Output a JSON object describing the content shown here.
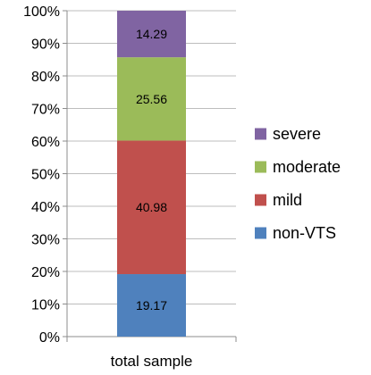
{
  "chart_data": {
    "type": "bar",
    "stacked": true,
    "categories": [
      "total sample"
    ],
    "series": [
      {
        "name": "non-VTS",
        "values": [
          19.17
        ],
        "color": "#4f81bd"
      },
      {
        "name": "mild",
        "values": [
          40.98
        ],
        "color": "#c0504d"
      },
      {
        "name": "moderate",
        "values": [
          25.56
        ],
        "color": "#9bbb59"
      },
      {
        "name": "severe",
        "values": [
          14.29
        ],
        "color": "#8064a2"
      }
    ],
    "title": "",
    "xlabel": "",
    "ylabel": "",
    "ylim": [
      0,
      100
    ],
    "yticks": [
      "0%",
      "10%",
      "20%",
      "30%",
      "40%",
      "50%",
      "60%",
      "70%",
      "80%",
      "90%",
      "100%"
    ],
    "grid": true,
    "legend_position": "right",
    "legend_order": [
      "severe",
      "moderate",
      "mild",
      "non-VTS"
    ]
  }
}
